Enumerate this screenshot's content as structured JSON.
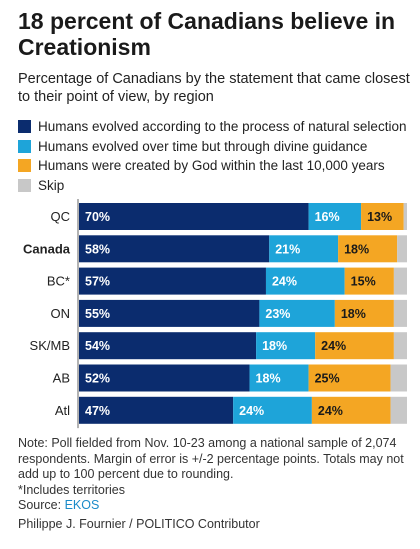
{
  "title": "18 percent of Canadians believe in Creationism",
  "subtitle": "Percentage of Canadians by the statement that came closest to their point of view, by region",
  "legend": [
    {
      "label": "Humans evolved according to the process of natural selection",
      "color": "#0b2c6e"
    },
    {
      "label": "Humans evolved over time but through divine guidance",
      "color": "#1ea4d9"
    },
    {
      "label": "Humans were created by God within the last 10,000 years",
      "color": "#f4a623"
    },
    {
      "label": "Skip",
      "color": "#c8c8c8"
    }
  ],
  "chart_data": {
    "type": "bar",
    "orientation": "horizontal",
    "stacked": true,
    "categories": [
      "QC",
      "Canada",
      "BC*",
      "ON",
      "SK/MB",
      "AB",
      "Atl"
    ],
    "bold_category": "Canada",
    "xlim": [
      0,
      100
    ],
    "series": [
      {
        "name": "Humans evolved according to the process of natural selection",
        "color": "#0b2c6e",
        "values": [
          70,
          58,
          57,
          55,
          54,
          52,
          47
        ],
        "labels": [
          "70%",
          "58%",
          "57%",
          "55%",
          "54%",
          "52%",
          "47%"
        ]
      },
      {
        "name": "Humans evolved over time but through divine guidance",
        "color": "#1ea4d9",
        "values": [
          16,
          21,
          24,
          23,
          18,
          18,
          24
        ],
        "labels": [
          "16%",
          "21%",
          "24%",
          "23%",
          "18%",
          "18%",
          "24%"
        ]
      },
      {
        "name": "Humans were created by God within the last 10,000 years",
        "color": "#f4a623",
        "values": [
          13,
          18,
          15,
          18,
          24,
          25,
          24
        ],
        "labels": [
          "13%",
          "18%",
          "15%",
          "18%",
          "24%",
          "25%",
          "24%"
        ]
      },
      {
        "name": "Skip",
        "color": "#c8c8c8",
        "values": [
          1,
          3,
          4,
          4,
          4,
          5,
          5
        ],
        "labels": [
          "",
          "",
          "",
          "",
          "",
          "",
          ""
        ]
      }
    ]
  },
  "note": "Note: Poll fielded from Nov. 10-23 among a national sample of 2,074 respondents. Margin of error is +/-2 percentage points. Totals may not add up to 100 percent due to rounding.",
  "note_footnote": "*Includes territories",
  "source_prefix": "Source: ",
  "source_name": "EKOS",
  "credit": "Philippe J. Fournier / POLITICO Contributor"
}
